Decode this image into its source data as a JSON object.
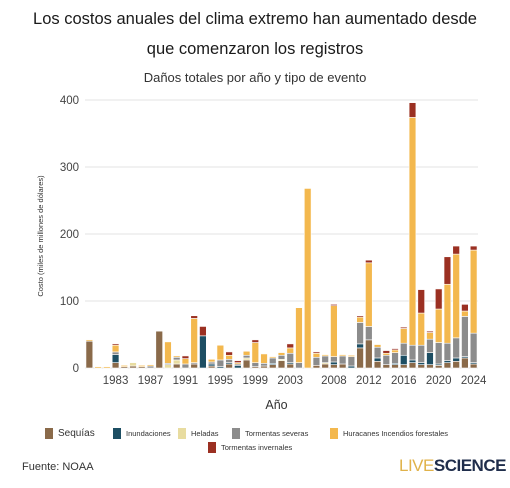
{
  "header": {
    "title_line1": "Los costos anuales del clima extremo han aumentado desde",
    "title_line2": "que comenzaron los registros",
    "subtitle": "Daños totales por año y tipo de evento"
  },
  "footer": {
    "source": "Fuente: NOAA",
    "logo_live": "LIVE",
    "logo_science": "SCIENCE"
  },
  "chart_data": {
    "type": "bar",
    "stacked": true,
    "title": "Daños totales por año y tipo de evento",
    "xlabel": "Año",
    "ylabel": "Costo (miles de millones de dólares)",
    "ylim": [
      0,
      400
    ],
    "yticks": [
      0,
      100,
      200,
      300,
      400
    ],
    "xtick_labels": [
      "1983",
      "1987",
      "1991",
      "1995",
      "1999",
      "2003",
      "2008",
      "2012",
      "2016",
      "2020",
      "2024"
    ],
    "grid": "horizontal",
    "legend_position": "bottom",
    "categories": [
      "1980",
      "1981",
      "1982",
      "1983",
      "1984",
      "1985",
      "1986",
      "1987",
      "1988",
      "1989",
      "1990",
      "1991",
      "1992",
      "1993",
      "1994",
      "1995",
      "1996",
      "1997",
      "1998",
      "1999",
      "2000",
      "2001",
      "2002",
      "2003",
      "2004",
      "2005",
      "2006",
      "2007",
      "2008",
      "2009",
      "2010",
      "2011",
      "2012",
      "2013",
      "2014",
      "2015",
      "2016",
      "2017",
      "2018",
      "2019",
      "2020",
      "2021",
      "2022",
      "2023",
      "2024"
    ],
    "series": [
      {
        "name": "Sequías",
        "color": "#8a6a4a",
        "values": [
          40,
          0,
          0,
          8,
          2,
          3,
          2,
          0,
          55,
          0,
          6,
          0,
          6,
          0,
          3,
          0,
          6,
          0,
          12,
          2,
          3,
          5,
          11,
          6,
          0,
          0,
          4,
          6,
          5,
          6,
          0,
          30,
          42,
          10,
          5,
          5,
          5,
          8,
          5,
          5,
          4,
          8,
          10,
          15,
          6
        ]
      },
      {
        "name": "Inundaciones",
        "color": "#1d4e63",
        "values": [
          0,
          0,
          0,
          12,
          0,
          0,
          0,
          0,
          0,
          0,
          0,
          0,
          0,
          48,
          3,
          2,
          2,
          4,
          0,
          0,
          0,
          2,
          0,
          2,
          0,
          0,
          0,
          0,
          4,
          0,
          3,
          6,
          0,
          5,
          0,
          2,
          14,
          4,
          3,
          18,
          2,
          3,
          5,
          2,
          2
        ]
      },
      {
        "name": "Heladas",
        "color": "#e8dca0",
        "values": [
          0,
          0,
          0,
          0,
          0,
          5,
          0,
          0,
          0,
          5,
          6,
          0,
          0,
          0,
          0,
          0,
          0,
          0,
          3,
          0,
          0,
          0,
          2,
          0,
          0,
          0,
          0,
          2,
          0,
          0,
          0,
          0,
          0,
          0,
          0,
          0,
          0,
          0,
          0,
          0,
          0,
          0,
          0,
          0,
          0
        ]
      },
      {
        "name": "Tormentas severas",
        "color": "#8c8c8c",
        "values": [
          0,
          0,
          0,
          4,
          0,
          0,
          0,
          3,
          0,
          2,
          4,
          6,
          2,
          0,
          3,
          10,
          5,
          2,
          4,
          6,
          4,
          8,
          6,
          14,
          8,
          0,
          12,
          10,
          8,
          12,
          14,
          32,
          20,
          16,
          14,
          16,
          18,
          22,
          26,
          20,
          32,
          26,
          30,
          60,
          44
        ]
      },
      {
        "name": "Huracanes Incendios forestales",
        "color": "#f3b84e",
        "values": [
          2,
          2,
          2,
          10,
          2,
          0,
          2,
          2,
          0,
          32,
          2,
          8,
          66,
          0,
          4,
          22,
          6,
          2,
          6,
          30,
          14,
          2,
          4,
          8,
          82,
          268,
          6,
          2,
          76,
          2,
          2,
          8,
          95,
          4,
          3,
          4,
          22,
          340,
          48,
          10,
          50,
          88,
          125,
          8,
          124
        ]
      },
      {
        "name": "Tormentas invernales",
        "color": "#9b3022",
        "values": [
          0,
          0,
          0,
          2,
          0,
          0,
          0,
          0,
          0,
          0,
          0,
          4,
          4,
          14,
          0,
          0,
          5,
          3,
          0,
          4,
          0,
          0,
          0,
          6,
          0,
          0,
          2,
          0,
          2,
          0,
          0,
          2,
          4,
          0,
          4,
          2,
          2,
          22,
          35,
          2,
          30,
          41,
          12,
          10,
          6
        ]
      }
    ]
  }
}
